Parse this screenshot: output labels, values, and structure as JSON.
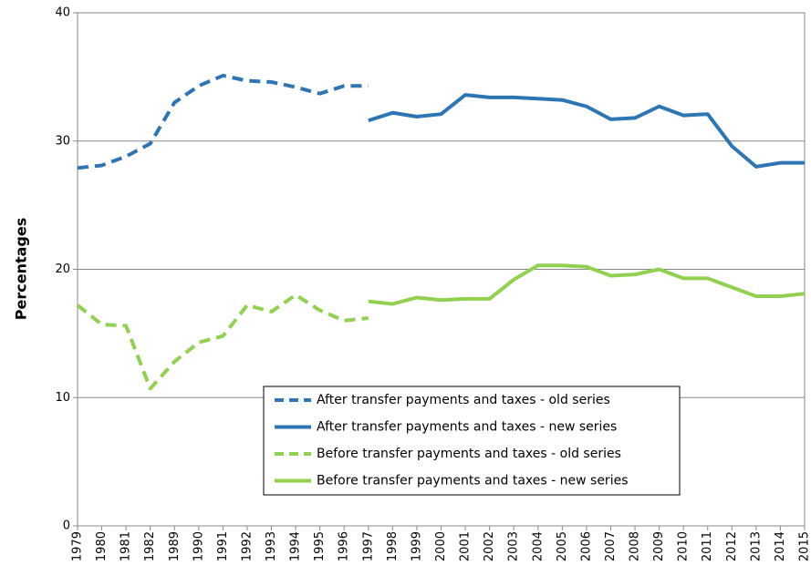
{
  "chart_data": {
    "type": "line",
    "y_label": "Percentages",
    "categories": [
      "1979",
      "1980",
      "1981",
      "1982",
      "1989",
      "1990",
      "1991",
      "1992",
      "1993",
      "1994",
      "1995",
      "1996",
      "1997",
      "1998",
      "1999",
      "2000",
      "2001",
      "2002",
      "2003",
      "2004",
      "2005",
      "2006",
      "2007",
      "2008",
      "2009",
      "2010",
      "2011",
      "2012",
      "2013",
      "2014",
      "2015"
    ],
    "series": [
      {
        "name": "After transfer payments and taxes - old series",
        "color": "#2e75b6",
        "dashed": true,
        "values": [
          27.9,
          28.1,
          28.8,
          29.8,
          33.0,
          34.3,
          35.1,
          34.7,
          34.6,
          34.2,
          33.7,
          34.3,
          34.3,
          null,
          null,
          null,
          null,
          null,
          null,
          null,
          null,
          null,
          null,
          null,
          null,
          null,
          null,
          null,
          null,
          null,
          null
        ]
      },
      {
        "name": "After transfer payments and taxes - new series",
        "color": "#2e75b6",
        "dashed": false,
        "values": [
          null,
          null,
          null,
          null,
          null,
          null,
          null,
          null,
          null,
          null,
          null,
          null,
          31.6,
          32.2,
          31.9,
          32.1,
          33.6,
          33.4,
          33.4,
          33.3,
          33.2,
          32.7,
          31.7,
          31.8,
          32.7,
          32.0,
          32.1,
          29.6,
          28.0,
          28.3,
          28.3
        ]
      },
      {
        "name": "Before transfer payments and taxes - old series",
        "color": "#92d050",
        "dashed": true,
        "values": [
          17.2,
          15.7,
          15.6,
          10.7,
          12.8,
          14.3,
          14.8,
          17.2,
          16.7,
          18.0,
          16.8,
          16.0,
          16.2,
          null,
          null,
          null,
          null,
          null,
          null,
          null,
          null,
          null,
          null,
          null,
          null,
          null,
          null,
          null,
          null,
          null,
          null
        ]
      },
      {
        "name": "Before transfer payments and taxes - new series",
        "color": "#92d050",
        "dashed": false,
        "values": [
          null,
          null,
          null,
          null,
          null,
          null,
          null,
          null,
          null,
          null,
          null,
          null,
          17.5,
          17.3,
          17.8,
          17.6,
          17.7,
          17.7,
          19.2,
          20.3,
          20.3,
          20.2,
          19.5,
          19.6,
          20.0,
          19.3,
          19.3,
          18.6,
          17.9,
          17.9,
          18.1
        ]
      }
    ],
    "ylim": [
      0,
      40
    ],
    "yticks": [
      0,
      10,
      20,
      30,
      40
    ],
    "grid": true
  }
}
